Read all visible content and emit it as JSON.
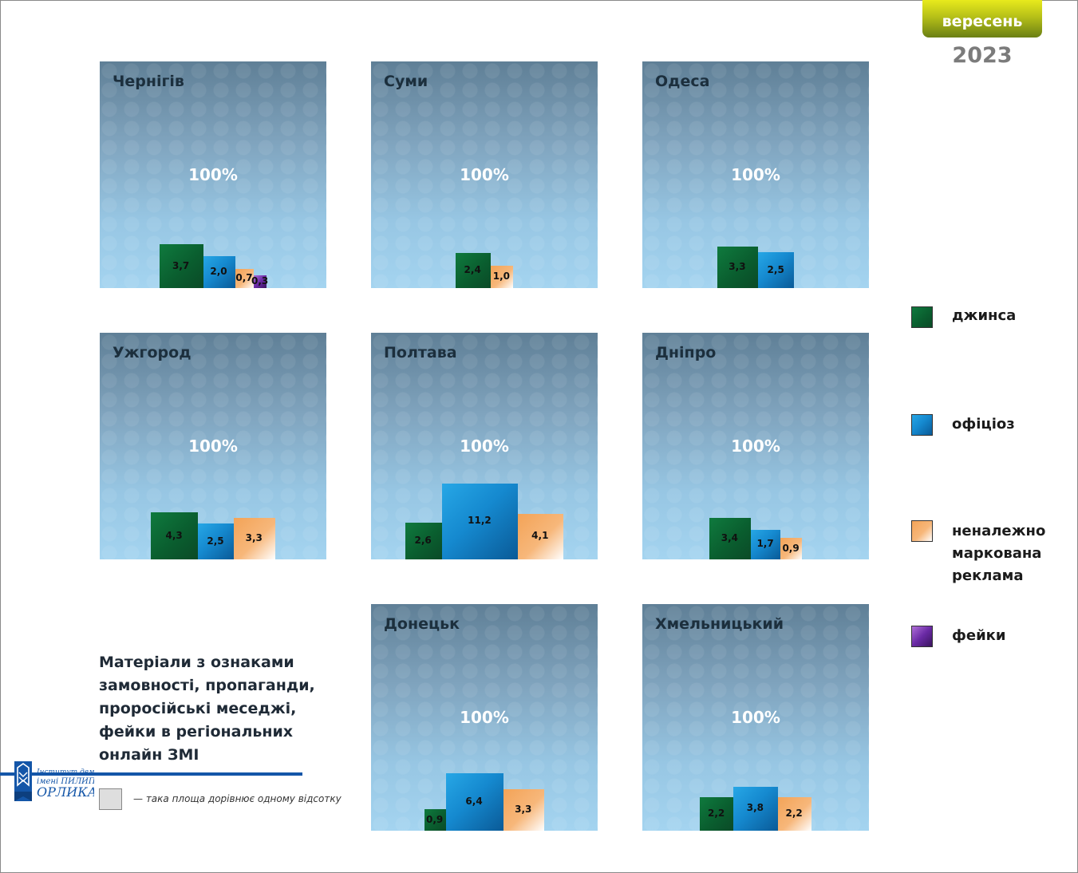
{
  "header": {
    "month": "вересень",
    "year": "2023"
  },
  "legend": [
    {
      "key": "jeans",
      "label": "джинса",
      "lines": [
        "джинса"
      ],
      "color": "#0a6b35"
    },
    {
      "key": "official",
      "label": "офіціоз",
      "lines": [
        "офіціоз"
      ],
      "color": "#168ed4"
    },
    {
      "key": "ads",
      "label": "неналежно маркована реклама",
      "lines": [
        "неналежно",
        "маркована",
        "реклама"
      ],
      "color": "#f4a95f"
    },
    {
      "key": "fakes",
      "label": "фейки",
      "lines": [
        "фейки"
      ],
      "color": "#5a2590"
    }
  ],
  "description": [
    "Матеріали з ознаками",
    "замовності, пропаганди,",
    "проросійські меседжі,",
    "фейки в регіональних",
    "онлайн ЗМІ"
  ],
  "scale_note": "— така площа дорівнює одному відсотку",
  "logo_text": [
    "Інститут демократії",
    "імені ПИЛИПА",
    "ОРЛИКА"
  ],
  "chart_data": {
    "type": "bar",
    "note": "area of each square proportional to percent",
    "panels": [
      {
        "city": "Чернігів",
        "total_label": "100%",
        "values": {
          "jeans": 3.7,
          "official": 2.0,
          "ads": 0.7,
          "fakes": 0.3
        },
        "labels": {
          "jeans": "3,7",
          "official": "2,0",
          "ads": "0,7",
          "fakes": "0,3"
        }
      },
      {
        "city": "Суми",
        "total_label": "100%",
        "values": {
          "jeans": 2.4,
          "ads": 1.0
        },
        "labels": {
          "jeans": "2,4",
          "ads": "1,0"
        }
      },
      {
        "city": "Одеса",
        "total_label": "100%",
        "values": {
          "jeans": 3.3,
          "official": 2.5
        },
        "labels": {
          "jeans": "3,3",
          "official": "2,5"
        }
      },
      {
        "city": "Ужгород",
        "total_label": "100%",
        "values": {
          "jeans": 4.3,
          "official": 2.5,
          "ads": 3.3
        },
        "labels": {
          "jeans": "4,3",
          "official": "2,5",
          "ads": "3,3"
        }
      },
      {
        "city": "Полтава",
        "total_label": "100%",
        "values": {
          "jeans": 2.6,
          "official": 11.2,
          "ads": 4.1
        },
        "labels": {
          "jeans": "2,6",
          "official": "11,2",
          "ads": "4,1"
        }
      },
      {
        "city": "Дніпро",
        "total_label": "100%",
        "values": {
          "jeans": 3.4,
          "official": 1.7,
          "ads": 0.9
        },
        "labels": {
          "jeans": "3,4",
          "official": "1,7",
          "ads": "0,9"
        }
      },
      {
        "city": "Донецьк",
        "total_label": "100%",
        "values": {
          "jeans": 0.9,
          "official": 6.4,
          "ads": 3.3
        },
        "labels": {
          "jeans": "0,9",
          "official": "6,4",
          "ads": "3,3"
        }
      },
      {
        "city": "Хмельницький",
        "total_label": "100%",
        "values": {
          "jeans": 2.2,
          "official": 3.8,
          "ads": 2.2
        },
        "labels": {
          "jeans": "2,2",
          "official": "3,8",
          "ads": "2,2"
        }
      }
    ]
  }
}
